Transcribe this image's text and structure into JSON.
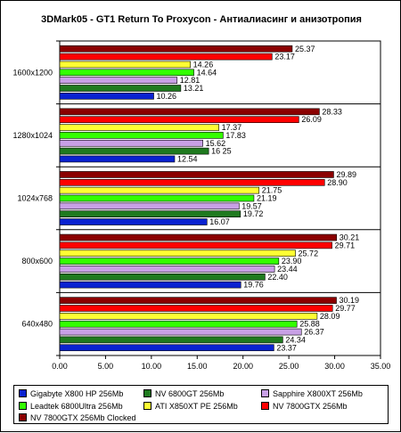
{
  "chart_data": {
    "type": "bar",
    "orientation": "horizontal",
    "title": "3DMark05 - GT1 Return To Proxycon - Антиалиасинг и анизотропия",
    "categories": [
      "1600x1200",
      "1280x1024",
      "1024x768",
      "800x600",
      "640x480"
    ],
    "xlim": [
      0,
      35
    ],
    "x_ticks": [
      "0.00",
      "5.00",
      "10.00",
      "15.00",
      "20.00",
      "25.00",
      "30.00",
      "35.00"
    ],
    "grid": false,
    "legend_position": "bottom",
    "series": [
      {
        "name": "Gigabyte X800 HP 256Mb",
        "color": "#0a22d0",
        "values": [
          10.26,
          12.54,
          16.07,
          19.76,
          23.37
        ],
        "labels": [
          "10.26",
          "12.54",
          "16.07",
          "19.76",
          "23.37"
        ]
      },
      {
        "name": "NV 6800GT 256Mb",
        "color": "#1f7a1f",
        "values": [
          13.21,
          16.25,
          19.72,
          22.4,
          24.34
        ],
        "labels": [
          "13.21",
          "16 25",
          "19.72",
          "22.40",
          "24.34"
        ]
      },
      {
        "name": "Sapphire X800XT 256Mb",
        "color": "#c8a0e6",
        "values": [
          12.81,
          15.62,
          19.57,
          23.44,
          26.37
        ],
        "labels": [
          "12.81",
          "15.62",
          "19.57",
          "23.44",
          "26.37"
        ]
      },
      {
        "name": "Leadtek 6800Ultra 256Mb",
        "color": "#33ff00",
        "values": [
          14.64,
          17.83,
          21.19,
          23.9,
          25.88
        ],
        "labels": [
          "14.64",
          "17.83",
          "21.19",
          "23.90",
          "25.88"
        ]
      },
      {
        "name": "ATI X850XT PE 256Mb",
        "color": "#ffff33",
        "values": [
          14.26,
          17.37,
          21.75,
          25.72,
          28.09
        ],
        "labels": [
          "14.26",
          "17.37",
          "21.75",
          "25.72",
          "28.09"
        ]
      },
      {
        "name": "NV 7800GTX 256Mb",
        "color": "#ff0000",
        "values": [
          23.17,
          26.09,
          28.9,
          29.71,
          29.77
        ],
        "labels": [
          "23.17",
          "26.09",
          "28.90",
          "29.71",
          "29.77"
        ]
      },
      {
        "name": "NV 7800GTX 256Mb Clocked",
        "color": "#8b0000",
        "values": [
          25.37,
          28.33,
          29.89,
          30.21,
          30.19
        ],
        "labels": [
          "25.37",
          "28.33",
          "29.89",
          "30.21",
          "30.19"
        ]
      }
    ],
    "plot_background": "#ffffff"
  }
}
